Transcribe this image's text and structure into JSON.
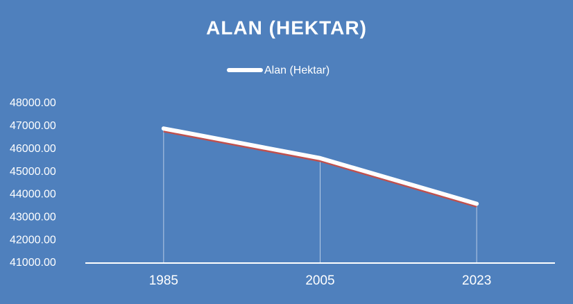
{
  "chart_data": {
    "type": "line",
    "title": "ALAN (HEKTAR)",
    "categories": [
      "1985",
      "2005",
      "2023"
    ],
    "series": [
      {
        "name": "Alan (Hektar)",
        "color": "#ffffff",
        "values": [
          46900,
          45600,
          43600
        ]
      }
    ],
    "ylim": [
      41000,
      48000
    ],
    "yticks": [
      {
        "value": 41000,
        "label": "41000.00"
      },
      {
        "value": 42000,
        "label": "42000.00"
      },
      {
        "value": 43000,
        "label": "43000.00"
      },
      {
        "value": 44000,
        "label": "44000.00"
      },
      {
        "value": 45000,
        "label": "45000.00"
      },
      {
        "value": 46000,
        "label": "46000.00"
      },
      {
        "value": 47000,
        "label": "47000.00"
      },
      {
        "value": 48000,
        "label": "48000.00"
      }
    ],
    "legend": "top",
    "background": "#4f80bd"
  }
}
